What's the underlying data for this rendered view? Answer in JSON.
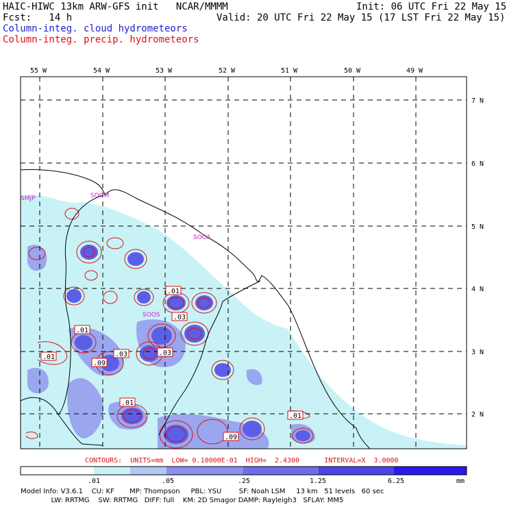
{
  "header": {
    "model_line": "HAIC-HIWC 13km ARW-GFS init   NCAR/MMMM",
    "init_line": "Init: 06 UTC Fri 22 May 15",
    "fcst_line": "Fcst:   14 h",
    "valid_line": "Valid: 20 UTC Fri 22 May 15 (17 LST Fri 22 May 15)",
    "field_cloud": "Column-integ. cloud hydrometeors",
    "field_precip": "Column-integ. precip. hydrometeors"
  },
  "map": {
    "lon_labels": [
      "55 W",
      "54 W",
      "53 W",
      "52 W",
      "51 W",
      "50 W",
      "49 W"
    ],
    "lat_labels": [
      "7 N",
      "6 N",
      "5 N",
      "4 N",
      "3 N",
      "2 N"
    ],
    "stations": [
      "SMJP",
      "SOGM",
      "SOCA",
      "SOOS"
    ],
    "contour_labels": [
      ".01",
      ".03",
      ".03",
      ".01",
      ".09",
      ".03",
      ".01",
      ".01",
      ".09",
      ".01"
    ],
    "colors": {
      "cloud_light": "#c8f2f6",
      "cloud_mid": "#9aa6ee",
      "cloud_strong": "#5d5ee6",
      "precip_contour": "#dd1111",
      "station_label": "#cc22cc"
    }
  },
  "contour_info": "CONTOURS:  UNITS=mm  LOW= 0.10000E-01  HIGH=  2.4300      INTERVAL=X  3.0000",
  "colorbar": {
    "ticks": [
      ".01",
      ".05",
      ".25",
      "1.25",
      "6.25"
    ],
    "unit": "mm",
    "colors": [
      "#ffffff",
      "#c8f2f6",
      "#b0c8f2",
      "#8c8ff0",
      "#6f6cea",
      "#4a44e8",
      "#2a18ee"
    ]
  },
  "model_info": {
    "line1": "Model Info: V3.6.1    CU: KF       MP: Thompson     PBL: YSU        SF: Noah LSM     13 km   51 levels   60 sec",
    "line2": "              LW: RRTMG    SW: RRTMG   DIFF: full    KM: 2D Smagor DAMP: Rayleigh3   SFLAY: MM5"
  }
}
